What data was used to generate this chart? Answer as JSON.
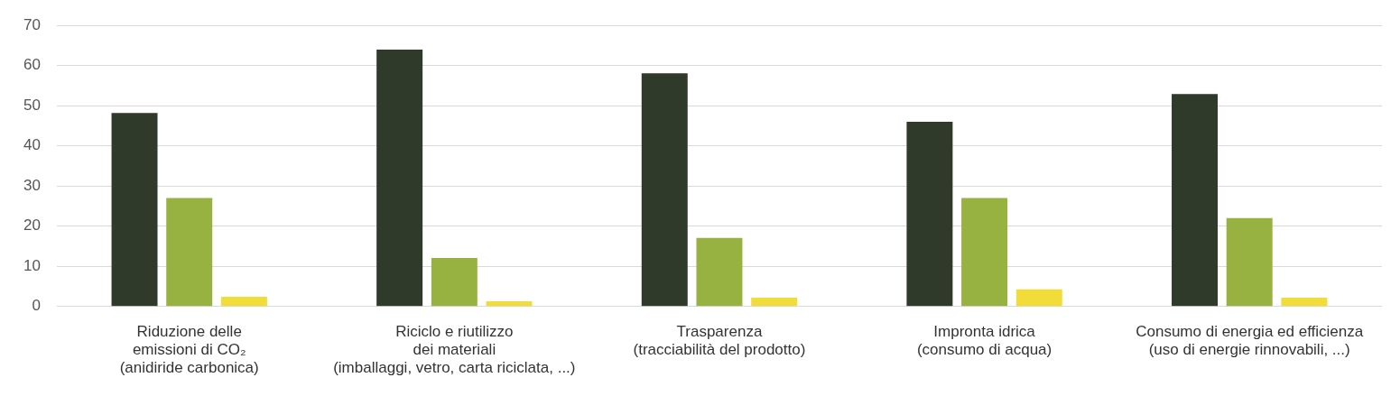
{
  "chart_data": {
    "type": "bar",
    "categories": [
      "Riduzione delle\nemissioni di CO₂\n(anidiride carbonica)",
      "Riciclo e riutilizzo\ndei materiali\n(imballaggi, vetro, carta riciclata, ...)",
      "Trasparenza\n(tracciabilità del prodotto)",
      "Impronta idrica\n(consumo di acqua)",
      "Consumo di energia ed efficienza\n(uso di energie rinnovabili, ...)"
    ],
    "series": [
      {
        "color": "#2f3a2b",
        "values": [
          48.2,
          64,
          58.1,
          46,
          52.9
        ]
      },
      {
        "color": "#97b240",
        "values": [
          27,
          12.1,
          17.1,
          27,
          22
        ]
      },
      {
        "color": "#f2dc3a",
        "values": [
          2.4,
          1.3,
          2.2,
          4.3,
          2.2
        ]
      }
    ],
    "ylim": [
      0,
      70
    ],
    "yticks": [
      0,
      10,
      20,
      30,
      40,
      50,
      60,
      70
    ],
    "grid": "y",
    "legend": false
  }
}
